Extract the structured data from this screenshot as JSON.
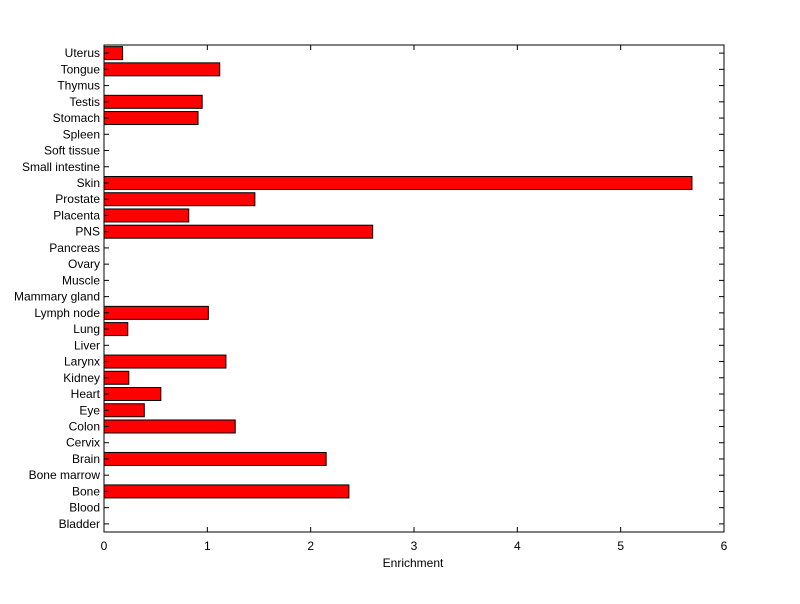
{
  "chart_data": {
    "type": "bar",
    "orientation": "horizontal",
    "title": "",
    "xlabel": "Enrichment",
    "ylabel": "",
    "xlim": [
      0,
      6
    ],
    "xticks": [
      0,
      1,
      2,
      3,
      4,
      5,
      6
    ],
    "grid": false,
    "legend": "none",
    "categories": [
      "Uterus",
      "Tongue",
      "Thymus",
      "Testis",
      "Stomach",
      "Spleen",
      "Soft tissue",
      "Small intestine",
      "Skin",
      "Prostate",
      "Placenta",
      "PNS",
      "Pancreas",
      "Ovary",
      "Muscle",
      "Mammary gland",
      "Lymph node",
      "Lung",
      "Liver",
      "Larynx",
      "Kidney",
      "Heart",
      "Eye",
      "Colon",
      "Cervix",
      "Brain",
      "Bone marrow",
      "Bone",
      "Blood",
      "Bladder"
    ],
    "values": [
      0.18,
      1.12,
      0,
      0.95,
      0.91,
      0,
      0,
      0,
      5.69,
      1.46,
      0.82,
      2.6,
      0,
      0,
      0,
      0,
      1.01,
      0.23,
      0,
      1.18,
      0.24,
      0.55,
      0.39,
      1.27,
      0,
      2.15,
      0,
      2.37,
      0,
      0
    ],
    "colors": {
      "bar_fill": "#ff0000",
      "bar_stroke": "#000000",
      "axis": "#000000",
      "background": "#ffffff"
    }
  }
}
